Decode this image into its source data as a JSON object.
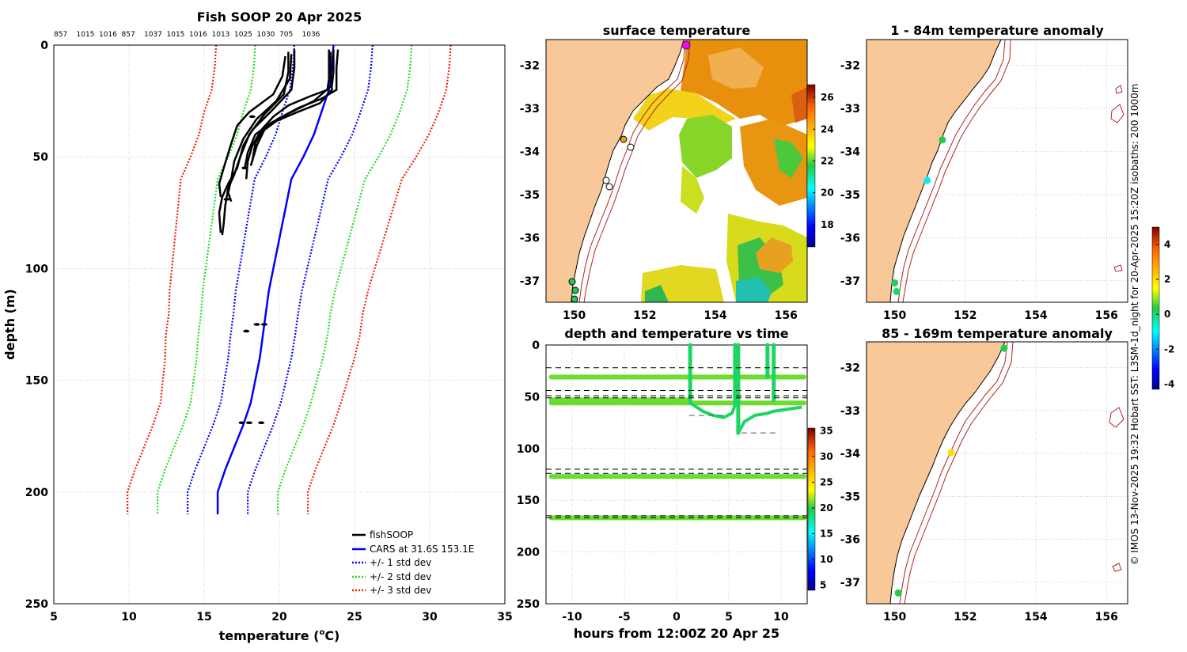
{
  "colors": {
    "obs": "#000000",
    "mean": "#0000ff",
    "sd1": "#0000ff",
    "sd2": "#22dd22",
    "sd3": "#ee2200",
    "land": "#f8c898",
    "iso": "#b22222",
    "grid": "#b0b0b0"
  },
  "chart_data": [
    {
      "id": "profile",
      "type": "line",
      "title": "Fish SOOP 20 Apr 2025",
      "xlabel": "temperature (",
      "xlabel_sup": "o",
      "xlabel_unit": "C)",
      "ylabel": "depth (m)",
      "xlim": [
        5,
        35
      ],
      "ylim": [
        0,
        250
      ],
      "xticks": [
        "5",
        "10",
        "15",
        "20",
        "25",
        "30",
        "35"
      ],
      "yticks": [
        "0",
        "50",
        "100",
        "150",
        "200",
        "250"
      ],
      "top_ids": [
        "857",
        "1015",
        "1016",
        "857",
        "1037",
        "1015",
        "1016",
        "1013",
        "1025",
        "1030",
        "705",
        "1036"
      ],
      "legend": [
        "fishSOOP",
        "CARS at 31.6S 153.1E",
        "+/- 1 std dev",
        "+/- 2 std dev",
        "+/- 3 std dev"
      ],
      "depth": [
        0,
        10,
        20,
        30,
        40,
        50,
        60,
        70,
        80,
        90,
        100,
        110,
        120,
        130,
        140,
        150,
        160,
        170,
        180,
        190,
        200,
        210
      ],
      "mean": [
        23.6,
        23.5,
        23.3,
        22.8,
        22.3,
        21.6,
        20.8,
        20.5,
        20.2,
        19.9,
        19.6,
        19.3,
        19.1,
        18.9,
        18.7,
        18.4,
        18.1,
        17.6,
        17.0,
        16.4,
        15.9,
        15.9
      ],
      "sd": [
        2.6,
        2.6,
        2.6,
        2.6,
        2.55,
        2.5,
        2.45,
        2.4,
        2.35,
        2.3,
        2.25,
        2.2,
        2.15,
        2.15,
        2.1,
        2.05,
        2.0,
        2.0,
        2.0,
        2.0,
        2.0,
        2.0
      ],
      "casts": [
        [
          [
            21.0,
            2
          ],
          [
            21.0,
            10
          ],
          [
            20.8,
            20
          ],
          [
            19.4,
            30
          ],
          [
            18.2,
            38
          ],
          [
            17.6,
            45
          ],
          [
            17.2,
            55
          ],
          [
            16.6,
            62
          ],
          [
            16.2,
            68
          ],
          [
            16.0,
            75
          ],
          [
            16.1,
            84
          ]
        ],
        [
          [
            20.6,
            3
          ],
          [
            20.6,
            12
          ],
          [
            20.3,
            22
          ],
          [
            19.0,
            31
          ],
          [
            18.0,
            40
          ],
          [
            17.4,
            50
          ],
          [
            17.0,
            58
          ],
          [
            16.6,
            64
          ],
          [
            16.4,
            72
          ],
          [
            16.3,
            80
          ],
          [
            16.2,
            85
          ]
        ],
        [
          [
            20.8,
            4
          ],
          [
            20.7,
            15
          ],
          [
            19.8,
            25
          ],
          [
            18.5,
            33
          ],
          [
            17.6,
            42
          ],
          [
            17.0,
            52
          ],
          [
            16.8,
            60
          ],
          [
            16.6,
            66
          ],
          [
            16.8,
            70
          ]
        ],
        [
          [
            20.4,
            5
          ],
          [
            20.2,
            14
          ],
          [
            19.6,
            22
          ],
          [
            18.0,
            30
          ],
          [
            17.2,
            36
          ],
          [
            16.8,
            44
          ],
          [
            16.3,
            55
          ],
          [
            16.0,
            62
          ],
          [
            16.1,
            68
          ]
        ],
        [
          [
            23.3,
            2
          ],
          [
            23.3,
            15
          ],
          [
            23.2,
            20
          ],
          [
            22.0,
            23
          ],
          [
            20.6,
            27
          ],
          [
            19.6,
            32
          ],
          [
            18.8,
            38
          ],
          [
            18.2,
            45
          ],
          [
            17.9,
            52
          ],
          [
            17.8,
            60
          ]
        ],
        [
          [
            23.6,
            2
          ],
          [
            23.6,
            12
          ],
          [
            23.5,
            18
          ],
          [
            22.3,
            25
          ],
          [
            20.8,
            30
          ],
          [
            19.4,
            35
          ],
          [
            18.4,
            40
          ],
          [
            17.9,
            48
          ],
          [
            17.7,
            55
          ]
        ],
        [
          [
            23.9,
            2
          ],
          [
            23.8,
            10
          ],
          [
            23.8,
            20
          ],
          [
            22.8,
            24
          ],
          [
            21.3,
            28
          ],
          [
            19.9,
            33
          ],
          [
            18.9,
            38
          ],
          [
            18.4,
            44
          ],
          [
            18.2,
            52
          ]
        ],
        [
          [
            23.4,
            3
          ],
          [
            23.4,
            10
          ],
          [
            23.5,
            20
          ],
          [
            22.7,
            26
          ],
          [
            21.2,
            30
          ],
          [
            19.8,
            34
          ],
          [
            19.0,
            38
          ],
          [
            18.5,
            45
          ],
          [
            18.1,
            54
          ]
        ]
      ],
      "blobs": [
        [
          18.2,
          32
        ],
        [
          17.7,
          55
        ],
        [
          16.5,
          69
        ],
        [
          18.5,
          125
        ],
        [
          19.0,
          125
        ],
        [
          17.8,
          128
        ],
        [
          18.0,
          169
        ],
        [
          18.8,
          169
        ],
        [
          17.5,
          169
        ]
      ]
    },
    {
      "id": "sst",
      "type": "heatmap",
      "title": "surface temperature",
      "xlim": [
        149.2,
        156.6
      ],
      "ylim": [
        -37.5,
        -31.4
      ],
      "xticks": [
        "150",
        "152",
        "154",
        "156"
      ],
      "yticks": [
        "-32",
        "-33",
        "-34",
        "-35",
        "-36",
        "-37"
      ],
      "colorbar_ticks": [
        "18",
        "20",
        "22",
        "24",
        "26"
      ],
      "colorbar_range": [
        16.6,
        26.8
      ]
    },
    {
      "id": "timeseries",
      "type": "scatter",
      "title": "depth and temperature vs time",
      "xlabel": "hours from 12:00Z 20 Apr 25",
      "xlim": [
        -12.5,
        12.5
      ],
      "ylim": [
        0,
        250
      ],
      "xticks": [
        "-10",
        "-5",
        "0",
        "5",
        "10"
      ],
      "yticks": [
        "0",
        "50",
        "100",
        "150",
        "200",
        "250"
      ],
      "colorbar_ticks": [
        "5",
        "10",
        "15",
        "20",
        "25",
        "30",
        "35"
      ],
      "colorbar_range": [
        4,
        35.5
      ],
      "dashed_depths": [
        22,
        44,
        49,
        51,
        120,
        124,
        165,
        167
      ],
      "layers": [
        [
          31,
          -12,
          12.2
        ],
        [
          56,
          -12,
          12.2
        ],
        [
          127,
          -12,
          12.2
        ],
        [
          167,
          -12,
          12.2
        ],
        [
          53,
          -12,
          1.0
        ]
      ]
    },
    {
      "id": "anom1",
      "type": "scatter",
      "title": "1 - 84m temperature anomaly",
      "xlim": [
        149.2,
        156.6
      ],
      "ylim": [
        -37.5,
        -31.4
      ],
      "xticks": [
        "150",
        "152",
        "154",
        "156"
      ],
      "yticks": [
        "-32",
        "-33",
        "-34",
        "-35",
        "-36",
        "-37"
      ],
      "points": [
        [
          151.35,
          -33.73,
          0.3
        ],
        [
          150.92,
          -34.67,
          -1.1
        ],
        [
          150.0,
          -37.05,
          0.2
        ],
        [
          150.05,
          -37.25,
          0.1
        ]
      ]
    },
    {
      "id": "anom2",
      "type": "scatter",
      "title": "85 - 169m temperature anomaly",
      "xlim": [
        149.2,
        156.6
      ],
      "ylim": [
        -37.5,
        -31.4
      ],
      "xticks": [
        "150",
        "152",
        "154",
        "156"
      ],
      "yticks": [
        "-32",
        "-33",
        "-34",
        "-35",
        "-36",
        "-37"
      ],
      "points": [
        [
          153.1,
          -31.55,
          0.3
        ],
        [
          151.6,
          -33.98,
          2.0
        ],
        [
          150.1,
          -37.25,
          0.3
        ]
      ]
    }
  ],
  "anomaly_colorbar": {
    "ticks": [
      "4",
      "2",
      "0",
      "-2",
      "-4"
    ],
    "range": [
      -4.3,
      5.0
    ]
  },
  "footer": "© IMOS 13-Nov-2025 19:32 Hobart SST: L3SM-1d_night for 20-Apr-2025 15:20Z isobaths: 200  1000m"
}
